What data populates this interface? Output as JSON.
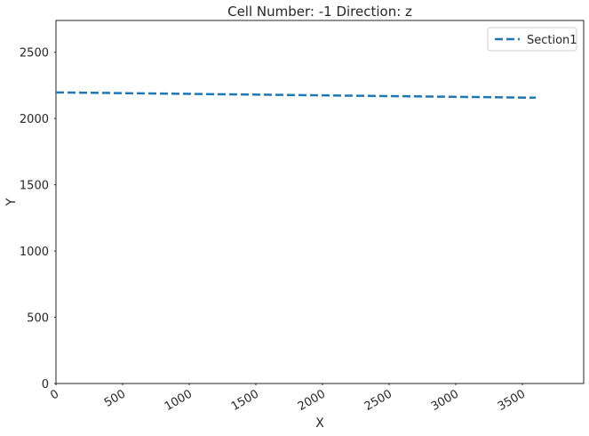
{
  "chart_data": {
    "type": "line",
    "title": "Cell Number: -1 Direction: z",
    "x_label": "X",
    "y_label": "Y",
    "x": [
      0,
      3600
    ],
    "series": [
      {
        "name": "Section1",
        "color": "#1f77b4",
        "values": [
          2197,
          2157
        ]
      }
    ],
    "xlim": [
      0,
      3960
    ],
    "xticks": [
      0,
      500,
      1000,
      1500,
      2000,
      2500,
      3000,
      3500
    ],
    "ylim": [
      0,
      2740
    ],
    "yticks": [
      0,
      500,
      1000,
      1500,
      2000,
      2500
    ],
    "legend": "upper-right",
    "grid": false
  }
}
